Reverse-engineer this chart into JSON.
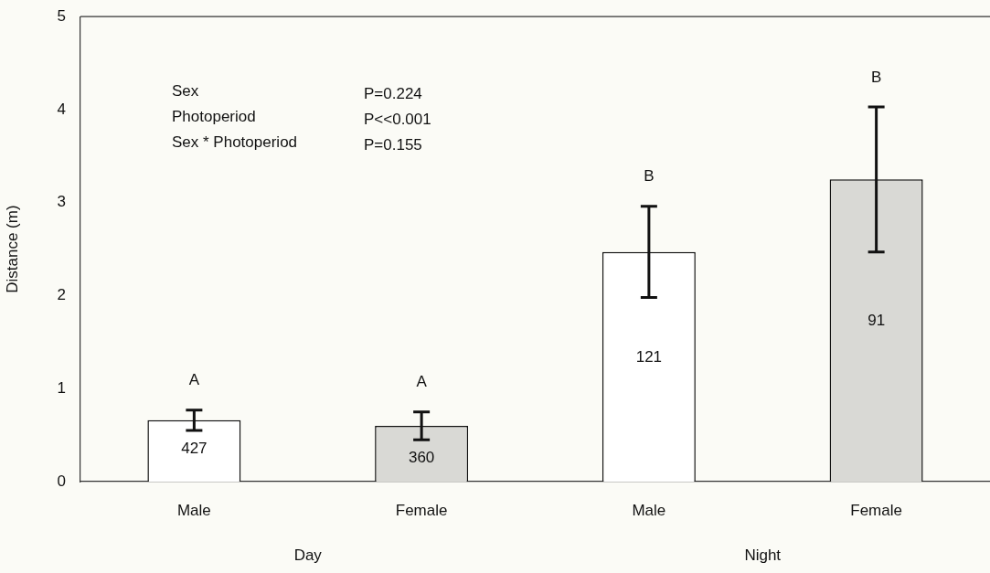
{
  "chart_data": {
    "type": "bar",
    "ylabel": "Distance (m)",
    "categories": [
      "Male",
      "Female",
      "Male",
      "Female"
    ],
    "values": [
      0.66,
      0.6,
      2.47,
      3.25
    ],
    "errors": [
      0.11,
      0.15,
      0.49,
      0.78
    ],
    "colors": [
      "#ffffff",
      "#d9d9d5",
      "#ffffff",
      "#d9d9d5"
    ],
    "ylim": [
      0,
      5
    ],
    "yticks": [
      0,
      1,
      2,
      3,
      4,
      5
    ],
    "grid": false,
    "legend": false,
    "annotations": [
      "Sex",
      "P=0.224",
      "Photoperiod",
      "P<<0.001",
      "Sex * Photoperiod",
      "P=0.155",
      "Day",
      "Night",
      "A",
      "A",
      "B",
      "B",
      "427",
      "360",
      "121",
      "91"
    ]
  }
}
